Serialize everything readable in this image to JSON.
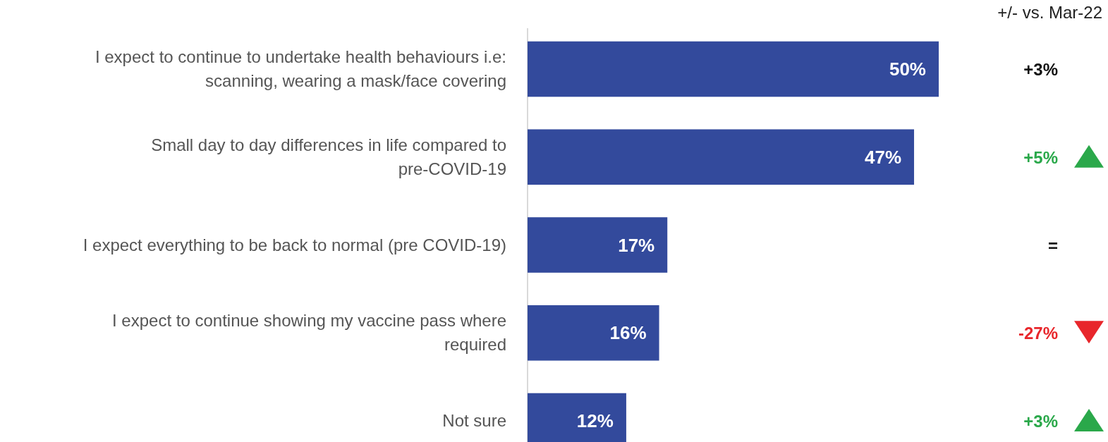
{
  "chart_data": {
    "type": "bar",
    "orientation": "horizontal",
    "categories": [
      "I expect to continue to undertake health behaviours i.e: scanning, wearing a mask/face covering",
      "Small day to day differences in life compared to pre-COVID-19",
      "I expect everything to be back to normal (pre COVID-19)",
      "I expect to continue showing my vaccine pass where required",
      "Not sure"
    ],
    "values": [
      50,
      47,
      17,
      16,
      12
    ],
    "color": "#334a9c",
    "value_labels": [
      "50%",
      "47%",
      "17%",
      "16%",
      "12%"
    ],
    "annotations": [
      "+/- vs. Mar-22",
      "+3%",
      "+5%",
      "=",
      "-27%",
      "+3%"
    ]
  }
}
